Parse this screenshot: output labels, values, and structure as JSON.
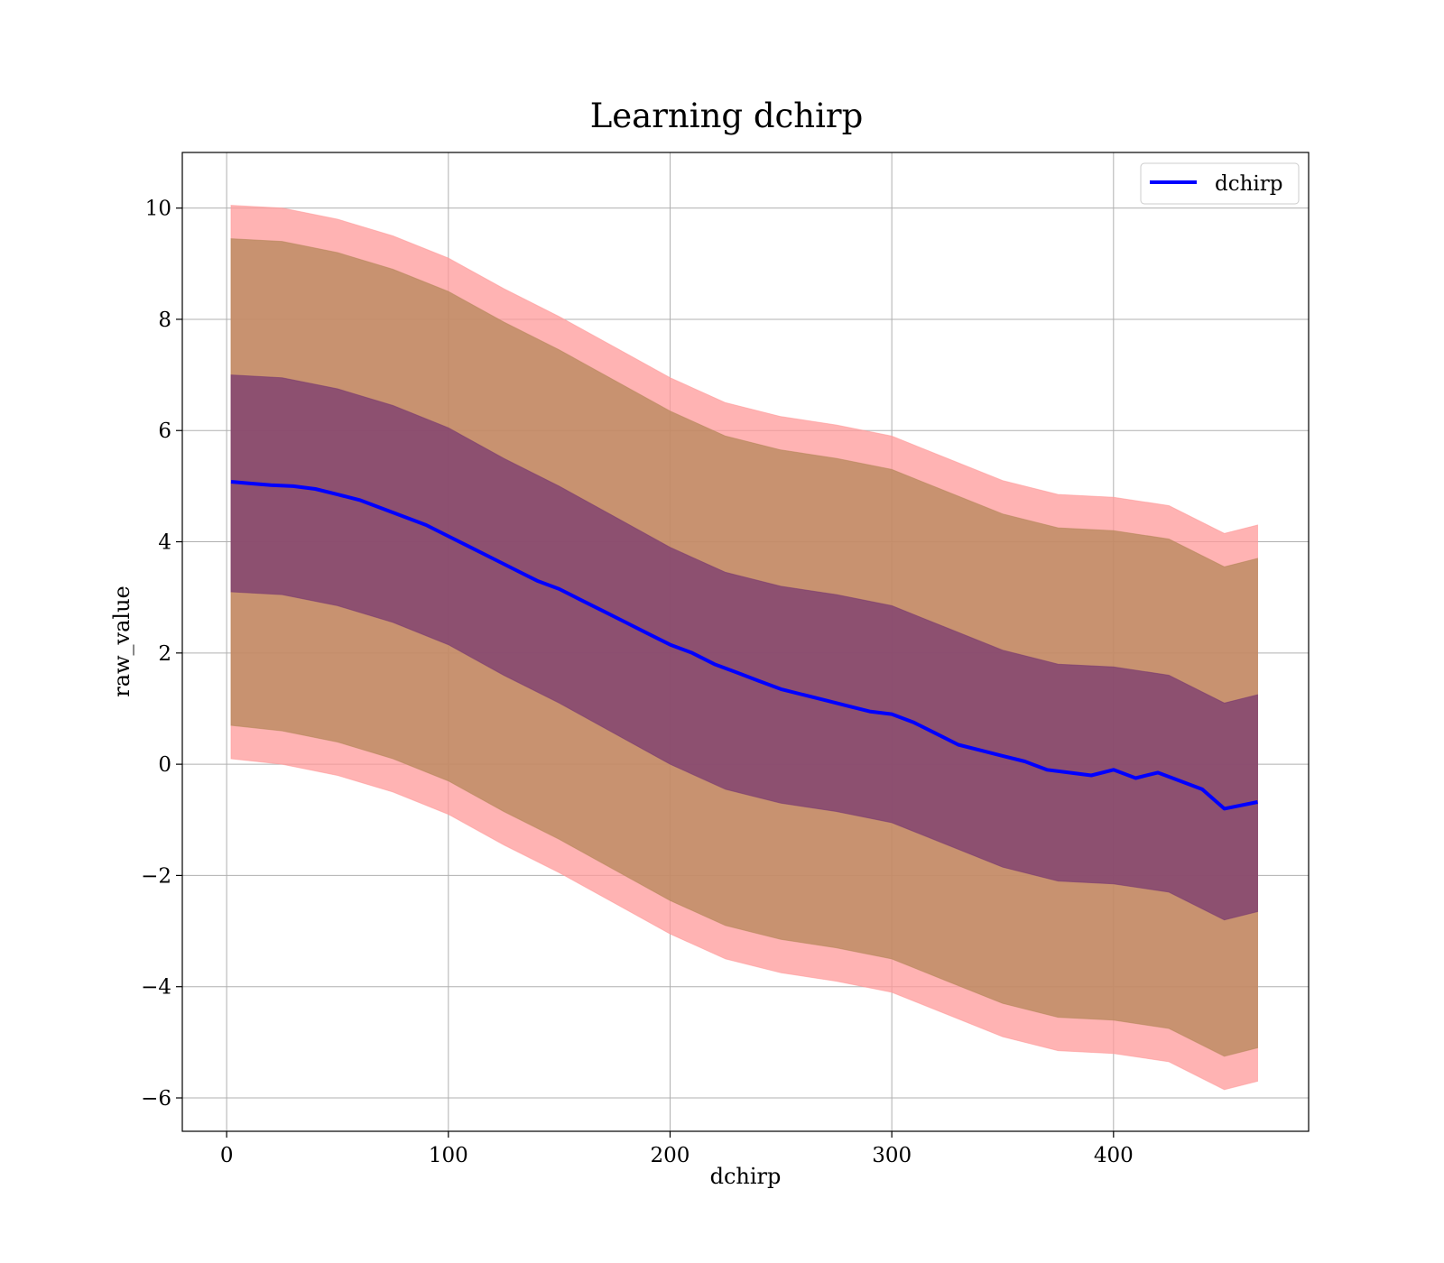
{
  "chart_data": {
    "type": "line",
    "title": "Learning dchirp",
    "xlabel": "dchirp",
    "ylabel": "raw_value",
    "xlim": [
      -20,
      488
    ],
    "ylim": [
      -6.6,
      11.0
    ],
    "xticks": [
      0,
      100,
      200,
      300,
      400
    ],
    "yticks": [
      -6,
      -4,
      -2,
      0,
      2,
      4,
      6,
      8,
      10
    ],
    "xtick_labels": [
      "0",
      "100",
      "200",
      "300",
      "400"
    ],
    "ytick_labels": [
      "−6",
      "−4",
      "−2",
      "0",
      "2",
      "4",
      "6",
      "8",
      "10"
    ],
    "grid": true,
    "legend": {
      "position": "top-right",
      "entries": [
        "dchirp"
      ]
    },
    "colors": {
      "line": "#0000ff",
      "band_outer": "#ff9999",
      "band_middle": "#b5875a",
      "band_inner": "#7a3a70",
      "grid": "#b0b0b0"
    },
    "series": [
      {
        "name": "dchirp",
        "x": [
          2,
          10,
          20,
          30,
          40,
          50,
          60,
          70,
          80,
          90,
          100,
          110,
          120,
          130,
          140,
          150,
          160,
          170,
          180,
          190,
          200,
          210,
          220,
          230,
          240,
          250,
          260,
          270,
          280,
          290,
          300,
          310,
          320,
          330,
          340,
          350,
          360,
          370,
          380,
          390,
          400,
          410,
          420,
          430,
          440,
          450,
          465
        ],
        "y": [
          5.08,
          5.05,
          5.02,
          5.0,
          4.95,
          4.85,
          4.75,
          4.6,
          4.45,
          4.3,
          4.1,
          3.9,
          3.7,
          3.5,
          3.3,
          3.15,
          2.95,
          2.75,
          2.55,
          2.35,
          2.15,
          2.0,
          1.8,
          1.65,
          1.5,
          1.35,
          1.25,
          1.15,
          1.05,
          0.95,
          0.9,
          0.75,
          0.55,
          0.35,
          0.25,
          0.15,
          0.05,
          -0.1,
          -0.15,
          -0.2,
          -0.1,
          -0.25,
          -0.15,
          -0.3,
          -0.45,
          -0.8,
          -0.68
        ]
      }
    ],
    "bands": [
      {
        "x": [
          2,
          25,
          50,
          75,
          100,
          125,
          150,
          175,
          200,
          225,
          250,
          275,
          300,
          325,
          350,
          375,
          400,
          425,
          450,
          465
        ],
        "upper": [
          10.05,
          10.0,
          9.8,
          9.5,
          9.1,
          8.55,
          8.05,
          7.5,
          6.95,
          6.5,
          6.25,
          6.1,
          5.9,
          5.5,
          5.1,
          4.85,
          4.8,
          4.65,
          4.15,
          4.3
        ],
        "lower": [
          0.1,
          0.0,
          -0.2,
          -0.5,
          -0.9,
          -1.45,
          -1.95,
          -2.5,
          -3.05,
          -3.5,
          -3.75,
          -3.9,
          -4.1,
          -4.5,
          -4.9,
          -5.15,
          -5.2,
          -5.35,
          -5.85,
          -5.7
        ]
      },
      {
        "x": [
          2,
          25,
          50,
          75,
          100,
          125,
          150,
          175,
          200,
          225,
          250,
          275,
          300,
          325,
          350,
          375,
          400,
          425,
          450,
          465
        ],
        "upper": [
          9.45,
          9.4,
          9.2,
          8.9,
          8.5,
          7.95,
          7.45,
          6.9,
          6.35,
          5.9,
          5.65,
          5.5,
          5.3,
          4.9,
          4.5,
          4.25,
          4.2,
          4.05,
          3.55,
          3.7
        ],
        "lower": [
          0.7,
          0.6,
          0.4,
          0.1,
          -0.3,
          -0.85,
          -1.35,
          -1.9,
          -2.45,
          -2.9,
          -3.15,
          -3.3,
          -3.5,
          -3.9,
          -4.3,
          -4.55,
          -4.6,
          -4.75,
          -5.25,
          -5.1
        ]
      },
      {
        "x": [
          2,
          25,
          50,
          75,
          100,
          125,
          150,
          175,
          200,
          225,
          250,
          275,
          300,
          325,
          350,
          375,
          400,
          425,
          450,
          465
        ],
        "upper": [
          7.0,
          6.95,
          6.75,
          6.45,
          6.05,
          5.5,
          5.0,
          4.45,
          3.9,
          3.45,
          3.2,
          3.05,
          2.85,
          2.45,
          2.05,
          1.8,
          1.75,
          1.6,
          1.1,
          1.25
        ],
        "lower": [
          3.1,
          3.05,
          2.85,
          2.55,
          2.15,
          1.6,
          1.1,
          0.55,
          0.0,
          -0.45,
          -0.7,
          -0.85,
          -1.05,
          -1.45,
          -1.85,
          -2.1,
          -2.15,
          -2.3,
          -2.8,
          -2.65
        ]
      }
    ]
  }
}
